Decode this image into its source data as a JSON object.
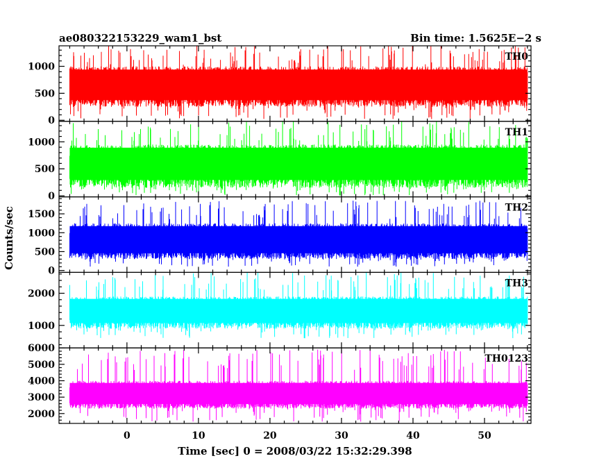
{
  "header": {
    "left_title": "ae080322153229_wam1_bst",
    "right_title": "Bin time: 1.5625E−2 s"
  },
  "chart_data": {
    "type": "line",
    "title": "ae080322153229_wam1_bst",
    "subtitle": "Bin time: 1.5625E−2 s",
    "xlabel": "Time [sec] 0 = 2008/03/22 15:32:29.398",
    "ylabel": "Counts/sec",
    "xlim": [
      -9.5,
      56.5
    ],
    "data_x_range": [
      -8,
      56
    ],
    "x_ticks": [
      0,
      10,
      20,
      30,
      40,
      50
    ],
    "grid": false,
    "panels": [
      {
        "name": "TH0",
        "color": "#ff0000",
        "ylim": [
          -20,
          1380
        ],
        "y_ticks": [
          0,
          500,
          1000
        ],
        "typical_range": [
          250,
          1000
        ],
        "peak": 1380,
        "min": 20,
        "mean": 600
      },
      {
        "name": "TH1",
        "color": "#00ff00",
        "ylim": [
          -20,
          1380
        ],
        "y_ticks": [
          0,
          500,
          1000
        ],
        "typical_range": [
          150,
          950
        ],
        "peak": 1380,
        "min": 5,
        "mean": 560
      },
      {
        "name": "TH2",
        "color": "#0000ff",
        "ylim": [
          -50,
          1950
        ],
        "y_ticks": [
          0,
          500,
          1000,
          1500
        ],
        "typical_range": [
          300,
          1250
        ],
        "peak": 1850,
        "min": 100,
        "mean": 750
      },
      {
        "name": "TH3",
        "color": "#00ffff",
        "ylim": [
          300,
          2650
        ],
        "y_ticks": [
          1000,
          2000
        ],
        "typical_range": [
          900,
          1900
        ],
        "peak": 2650,
        "min": 600,
        "mean": 1400
      },
      {
        "name": "TH0123",
        "color": "#ff00ff",
        "ylim": [
          1400,
          6000
        ],
        "y_ticks": [
          2000,
          3000,
          4000,
          5000,
          6000
        ],
        "typical_range": [
          2300,
          4000
        ],
        "peak": 5900,
        "min": 1500,
        "mean": 3100
      }
    ]
  }
}
